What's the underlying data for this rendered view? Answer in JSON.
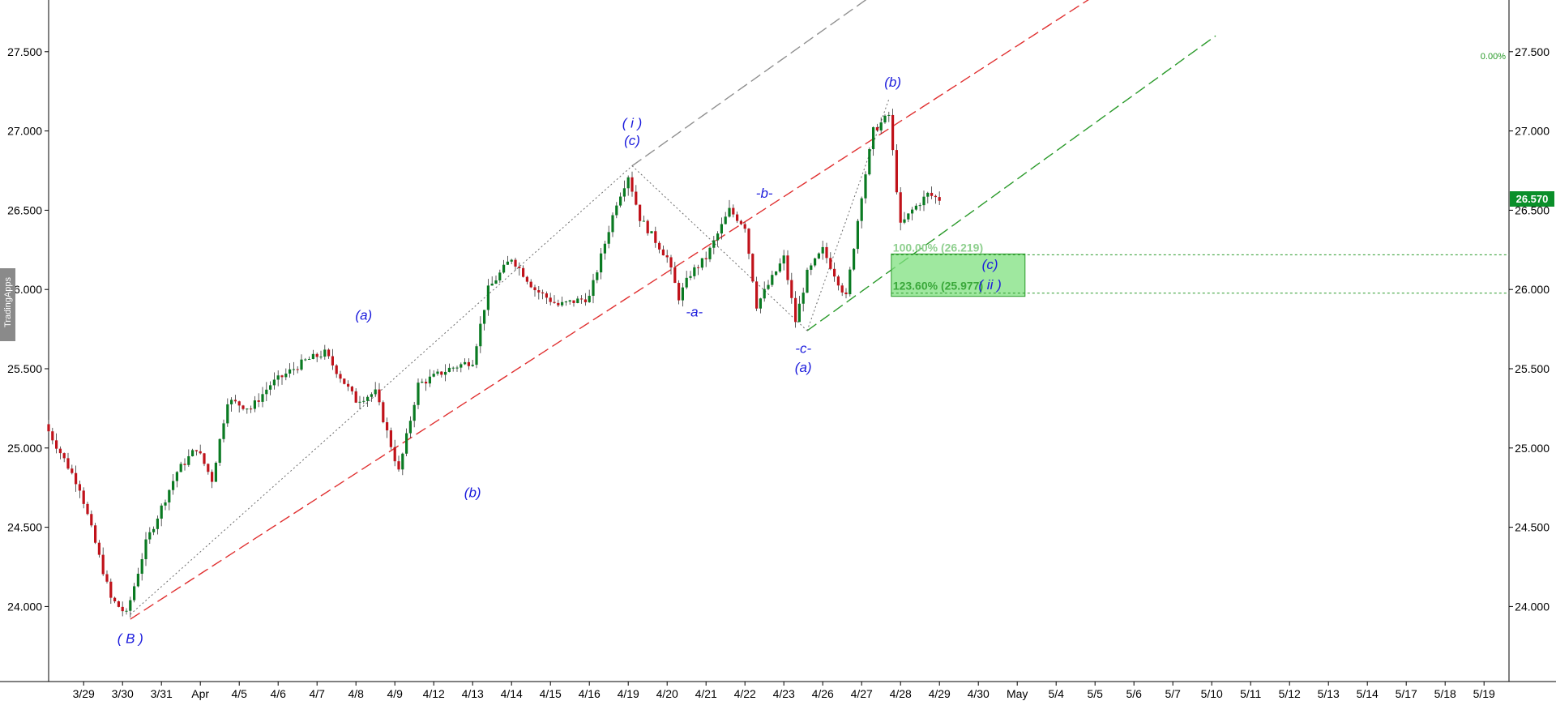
{
  "watermark": "TradingApps",
  "last_price": "26.570",
  "colors": {
    "up": "#0a7a22",
    "down": "#c0121a",
    "wave_label": "#1a1adc",
    "red_line": "#e03030",
    "green_line": "#2a9a2a",
    "gray_line": "#909090",
    "fib_fill": "#7fe07f"
  },
  "chart_data": {
    "type": "candlestick",
    "y_ticks": [
      "24.000",
      "24.500",
      "25.000",
      "25.500",
      "26.000",
      "26.500",
      "27.000",
      "27.500"
    ],
    "ylim": [
      23.5,
      27.75
    ],
    "x_ticks": [
      "3/29",
      "3/30",
      "3/31",
      "Apr",
      "4/5",
      "4/6",
      "4/7",
      "4/8",
      "4/9",
      "4/12",
      "4/13",
      "4/14",
      "4/15",
      "4/16",
      "4/19",
      "4/20",
      "4/21",
      "4/22",
      "4/23",
      "4/26",
      "4/27",
      "4/28",
      "4/29",
      "4/30",
      "May",
      "5/4",
      "5/5",
      "5/6",
      "5/7",
      "5/10",
      "5/11",
      "5/12",
      "5/13",
      "5/14",
      "5/17",
      "5/18",
      "5/19"
    ],
    "price_path": [
      [
        0,
        25.15
      ],
      [
        0.9,
        24.75
      ],
      [
        1.7,
        24.05
      ],
      [
        2.1,
        23.95
      ],
      [
        2.6,
        24.4
      ],
      [
        3.4,
        24.85
      ],
      [
        3.9,
        25.0
      ],
      [
        4.3,
        24.8
      ],
      [
        4.7,
        25.3
      ],
      [
        5.3,
        25.25
      ],
      [
        5.8,
        25.4
      ],
      [
        6.7,
        25.55
      ],
      [
        7.2,
        25.6
      ],
      [
        8.0,
        25.3
      ],
      [
        8.5,
        25.35
      ],
      [
        9.1,
        24.85
      ],
      [
        9.6,
        25.4
      ],
      [
        10.4,
        25.5
      ],
      [
        11.0,
        25.55
      ],
      [
        11.4,
        26.0
      ],
      [
        12.0,
        26.2
      ],
      [
        12.6,
        26.0
      ],
      [
        13.2,
        25.9
      ],
      [
        14.0,
        25.95
      ],
      [
        14.7,
        26.55
      ],
      [
        15.0,
        26.72
      ],
      [
        15.3,
        26.45
      ],
      [
        16.0,
        26.2
      ],
      [
        16.3,
        25.95
      ],
      [
        16.6,
        26.1
      ],
      [
        17.0,
        26.2
      ],
      [
        17.6,
        26.5
      ],
      [
        18.0,
        26.4
      ],
      [
        18.3,
        25.9
      ],
      [
        19.0,
        26.2
      ],
      [
        19.3,
        25.8
      ],
      [
        19.6,
        26.1
      ],
      [
        20.0,
        26.25
      ],
      [
        20.6,
        25.95
      ],
      [
        21.0,
        26.6
      ],
      [
        21.3,
        27.0
      ],
      [
        21.7,
        27.1
      ],
      [
        22.0,
        26.4
      ],
      [
        22.3,
        26.5
      ],
      [
        22.7,
        26.6
      ],
      [
        23.0,
        26.57
      ]
    ],
    "extend_day": 23.0,
    "series": [
      {
        "name": "",
        "color": "red",
        "from": [
          2.1,
          23.92
        ],
        "to": [
          27.5,
          27.95
        ],
        "dash": "14 6"
      },
      {
        "name": "",
        "color": "gray",
        "from": [
          15.0,
          26.78
        ],
        "to": [
          22.0,
          28.0
        ],
        "dash": "14 6"
      },
      {
        "name": "",
        "color": "green",
        "from": [
          19.5,
          25.74
        ],
        "to": [
          30.0,
          27.6
        ],
        "dash": "14 6"
      }
    ],
    "dotted_paths": [
      [
        [
          2.1,
          23.95
        ],
        [
          15.0,
          26.78
        ]
      ],
      [
        [
          15.0,
          26.78
        ],
        [
          19.5,
          25.74
        ]
      ],
      [
        [
          19.5,
          25.74
        ],
        [
          21.6,
          27.2
        ]
      ]
    ],
    "fib_levels": [
      {
        "label": "100.00% (26.219)",
        "value": 26.219
      },
      {
        "label": "123.60% (25.977)",
        "value": 25.977
      }
    ],
    "fib_top_label": "0.00%",
    "wave_labels": [
      {
        "text": "( B )",
        "day": 2.1,
        "price": 23.77
      },
      {
        "text": "(a)",
        "day": 8.1,
        "price": 25.81
      },
      {
        "text": "(b)",
        "day": 10.9,
        "price": 24.69
      },
      {
        "text": "( i )",
        "day": 15.0,
        "price": 27.02
      },
      {
        "text": "(c)",
        "day": 15.0,
        "price": 26.91
      },
      {
        "text": "-a-",
        "day": 16.6,
        "price": 25.83
      },
      {
        "text": "-b-",
        "day": 18.4,
        "price": 26.58
      },
      {
        "text": "-c-",
        "day": 19.4,
        "price": 25.6
      },
      {
        "text": "(a)",
        "day": 19.4,
        "price": 25.48
      },
      {
        "text": "(b)",
        "day": 21.7,
        "price": 27.28
      },
      {
        "text": "(c)",
        "day": 24.2,
        "price": 26.13
      },
      {
        "text": "( ii )",
        "day": 24.2,
        "price": 26.0
      }
    ]
  }
}
